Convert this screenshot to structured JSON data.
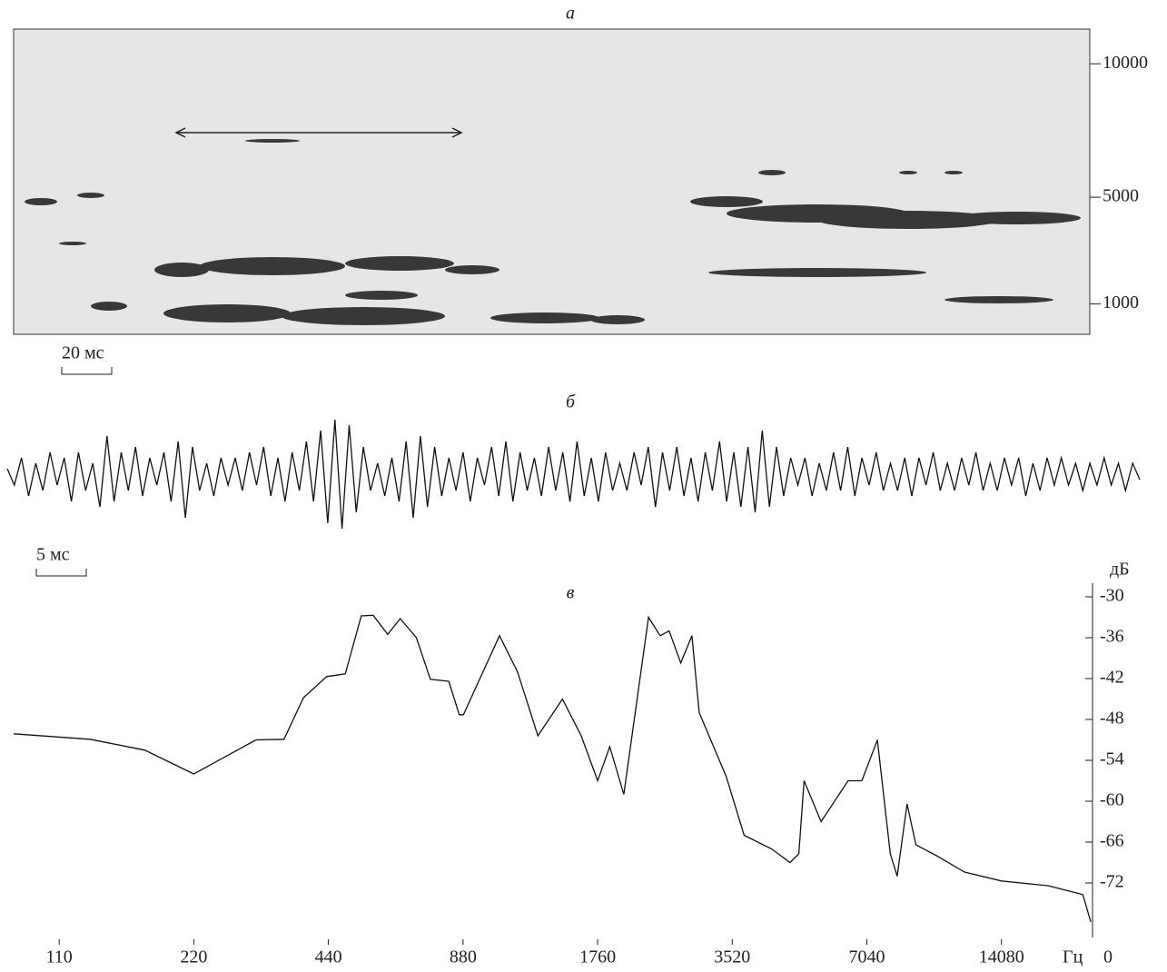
{
  "chart_data": [
    {
      "type": "spectrogram",
      "label": "а",
      "scale_bar": "20 мс",
      "ylim": [
        0,
        11300
      ],
      "yticks": [
        1000,
        5000,
        10000
      ]
    },
    {
      "type": "line",
      "label": "б",
      "scale_bar": "5 мс",
      "ylim": [
        -1,
        1
      ],
      "values": [
        0.1,
        -0.2,
        0.3,
        -0.4,
        0.2,
        -0.3,
        0.4,
        -0.2,
        0.3,
        -0.5,
        0.4,
        -0.3,
        0.2,
        -0.6,
        0.7,
        -0.5,
        0.4,
        -0.3,
        0.5,
        -0.4,
        0.3,
        -0.2,
        0.4,
        -0.5,
        0.6,
        -0.8,
        0.5,
        -0.3,
        0.2,
        -0.4,
        0.3,
        -0.2,
        0.3,
        -0.3,
        0.4,
        -0.2,
        0.5,
        -0.4,
        0.3,
        -0.5,
        0.4,
        -0.3,
        0.6,
        -0.5,
        0.8,
        -0.9,
        1.0,
        -1.0,
        0.9,
        -0.7,
        0.5,
        -0.3,
        0.2,
        -0.4,
        0.3,
        -0.5,
        0.6,
        -0.8,
        0.7,
        -0.6,
        0.5,
        -0.4,
        0.3,
        -0.3,
        0.4,
        -0.5,
        0.3,
        -0.2,
        0.5,
        -0.4,
        0.6,
        -0.5,
        0.4,
        -0.3,
        0.3,
        -0.4,
        0.5,
        -0.3,
        0.4,
        -0.5,
        0.6,
        -0.4,
        0.3,
        -0.5,
        0.4,
        -0.3,
        0.2,
        -0.3,
        0.4,
        -0.2,
        0.5,
        -0.6,
        0.4,
        -0.3,
        0.5,
        -0.4,
        0.3,
        -0.5,
        0.4,
        -0.3,
        0.6,
        -0.5,
        0.4,
        -0.6,
        0.5,
        -0.7,
        0.8,
        -0.6,
        0.5,
        -0.4,
        0.3,
        -0.2,
        0.3,
        -0.4,
        0.2,
        -0.3,
        0.4,
        -0.3,
        0.5,
        -0.4,
        0.3,
        -0.2,
        0.4,
        -0.3,
        0.2,
        -0.3,
        0.3,
        -0.4,
        0.3,
        -0.2,
        0.4,
        -0.3,
        0.2,
        -0.3,
        0.3,
        -0.2,
        0.4,
        -0.3,
        0.2,
        -0.3,
        0.3,
        -0.2,
        0.3,
        -0.4,
        0.2,
        -0.3,
        0.3,
        -0.2,
        0.3,
        -0.2,
        0.2,
        -0.3,
        0.2,
        -0.2,
        0.3,
        -0.2,
        0.2,
        -0.3,
        0.2,
        -0.1
      ]
    },
    {
      "type": "line",
      "label": "в",
      "xscale": "log",
      "xlim": [
        87,
        22500
      ],
      "ylim": [
        -80,
        -28
      ],
      "xticks": [
        110,
        220,
        440,
        880,
        1760,
        3520,
        7040,
        14080
      ],
      "yticks": [
        -30,
        -36,
        -42,
        -48,
        -54,
        -60,
        -66,
        -72
      ],
      "ylabel": "дБ",
      "xlabel": "Гц",
      "x_end_label": "0",
      "x": [
        87,
        129,
        171,
        220,
        303,
        350,
        387,
        436,
        480,
        521,
        554,
        597,
        637,
        692,
        744,
        818,
        863,
        882,
        1062,
        1165,
        1294,
        1468,
        1617,
        1760,
        1873,
        2014,
        2287,
        2428,
        2543,
        2700,
        2860,
        2969,
        3413,
        3742,
        4310,
        4740,
        4960,
        5095,
        5560,
        6390,
        6860,
        7430,
        7940,
        8230,
        8660,
        9060,
        10080,
        11640,
        14080,
        17900,
        21400,
        22300
      ],
      "values": [
        -50.1,
        -50.9,
        -52.5,
        -56,
        -51,
        -50.9,
        -44.8,
        -41.7,
        -41.3,
        -32.8,
        -32.7,
        -35.5,
        -33.2,
        -36,
        -42.1,
        -42.4,
        -47.3,
        -47.3,
        -35.7,
        -41,
        -50.4,
        -45,
        -50.4,
        -57,
        -52,
        -59,
        -33,
        -35.7,
        -35,
        -39.7,
        -35.7,
        -47,
        -56.4,
        -65,
        -67,
        -69,
        -67.7,
        -57,
        -63,
        -57,
        -57,
        -51,
        -67.7,
        -71,
        -60.4,
        -66.4,
        -68,
        -70.4,
        -71.7,
        -72.4,
        -73.7,
        -77.7
      ]
    }
  ]
}
